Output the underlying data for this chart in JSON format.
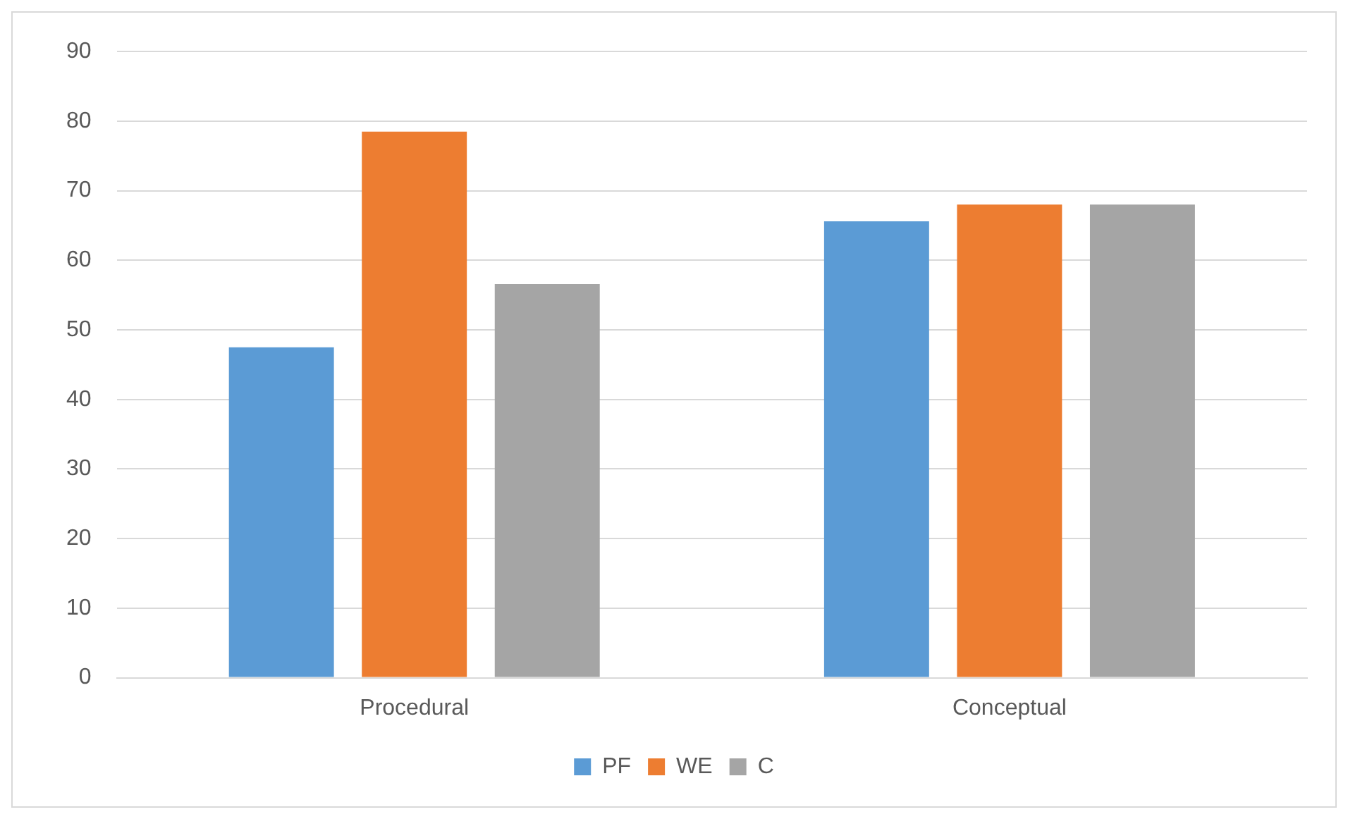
{
  "chart_data": {
    "type": "bar",
    "categories": [
      "Procedural",
      "Conceptual"
    ],
    "series": [
      {
        "name": "PF",
        "color": "#5b9bd5",
        "values": [
          47.5,
          65.6
        ]
      },
      {
        "name": "WE",
        "color": "#ed7d31",
        "values": [
          78.5,
          68
        ]
      },
      {
        "name": "C",
        "color": "#a5a5a5",
        "values": [
          56.6,
          68
        ]
      }
    ],
    "ylim": [
      0,
      90
    ],
    "yticks": [
      0,
      10,
      20,
      30,
      40,
      50,
      60,
      70,
      80,
      90
    ],
    "grid": "y",
    "legend": "bottom"
  }
}
